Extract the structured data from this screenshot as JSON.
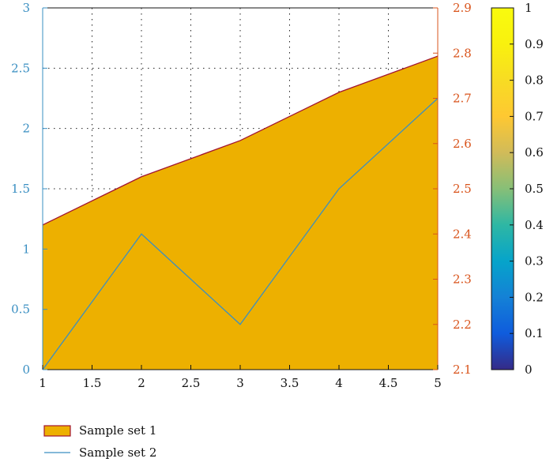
{
  "chart_data": {
    "type": "area",
    "title": "",
    "xlabel": "",
    "ylabel": "",
    "y2label": "",
    "xlim": [
      1,
      5
    ],
    "ylim": [
      0,
      3
    ],
    "y2lim": [
      2.1,
      2.9
    ],
    "x_ticks": [
      "1",
      "1.5",
      "2",
      "2.5",
      "3",
      "3.5",
      "4",
      "4.5",
      "5"
    ],
    "y_ticks": [
      "0",
      "0.5",
      "1",
      "1.5",
      "2",
      "2.5",
      "3"
    ],
    "y2_ticks": [
      "2.1",
      "2.2",
      "2.3",
      "2.4",
      "2.5",
      "2.6",
      "2.7",
      "2.8",
      "2.9"
    ],
    "grid": "dotted, visible above the area only",
    "x": [
      1,
      2,
      3,
      4,
      5
    ],
    "series": [
      {
        "name": "Sample set 1",
        "kind": "area",
        "axis": "left",
        "values": [
          1.2,
          1.6,
          1.9,
          2.3,
          2.6
        ]
      },
      {
        "name": "Sample set 2",
        "kind": "line",
        "axis": "right",
        "values": [
          2.1,
          2.4,
          2.2,
          2.5,
          2.7
        ]
      }
    ],
    "legend_position": "bottom-left, below plot",
    "colorbar": {
      "range": [
        0,
        1
      ],
      "ticks": [
        "0",
        "0.1",
        "0.2",
        "0.3",
        "0.4",
        "0.5",
        "0.6",
        "0.7",
        "0.8",
        "0.9",
        "1"
      ],
      "colormap": "parula"
    },
    "colors": {
      "area_fill": "#edb000",
      "area_edge": "#a2142f",
      "line": "#3a8fc2",
      "left_axis": "#3a8fc2",
      "right_axis": "#d9541c",
      "grid": "#222222"
    }
  }
}
